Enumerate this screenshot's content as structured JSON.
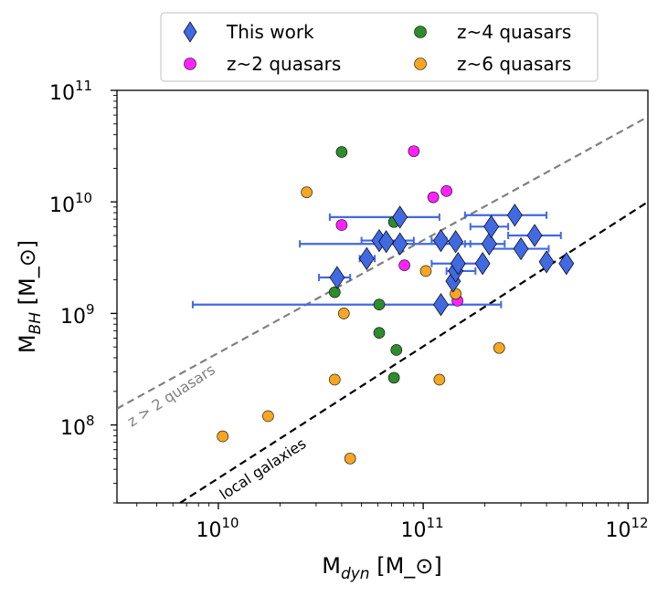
{
  "chart_data": {
    "type": "scatter",
    "title": "",
    "xlabel": "M_dyn [M_⊙]",
    "ylabel": "M_BH [M_⊙]",
    "xscale": "log",
    "yscale": "log",
    "xlim": [
      3200000000.0,
      1250000000000.0
    ],
    "ylim": [
      20000000.0,
      100000000000.0
    ],
    "x_ticks": [
      {
        "value": 10000000000.0,
        "base": "10",
        "exp": "10"
      },
      {
        "value": 100000000000.0,
        "base": "10",
        "exp": "11"
      },
      {
        "value": 1000000000000.0,
        "base": "10",
        "exp": "12"
      }
    ],
    "y_ticks": [
      {
        "value": 100000000.0,
        "base": "10",
        "exp": "8"
      },
      {
        "value": 1000000000.0,
        "base": "10",
        "exp": "9"
      },
      {
        "value": 10000000000.0,
        "base": "10",
        "exp": "10"
      },
      {
        "value": 100000000000.0,
        "base": "10",
        "exp": "11"
      }
    ],
    "legend": {
      "position": "top, outside plot",
      "entries": [
        {
          "label": "This work",
          "marker": "diamond",
          "color": "#4169e1"
        },
        {
          "label": "z~4 quasars",
          "marker": "circle",
          "color": "#2e8b2e"
        },
        {
          "label": "z~2 quasars",
          "marker": "circle",
          "color": "#ff22ff"
        },
        {
          "label": "z~6 quasars",
          "marker": "circle",
          "color": "#f5a623"
        }
      ]
    },
    "lines": [
      {
        "name": "z > 2 quasars",
        "label": "z > 2 quasars",
        "style": "dashed",
        "color": "#808080",
        "points": [
          [
            3200000000.0,
            140000000.0
          ],
          [
            1250000000000.0,
            58000000000.0
          ]
        ]
      },
      {
        "name": "local galaxies",
        "label": "local galaxies",
        "style": "dashed",
        "color": "#000000",
        "points": [
          [
            6500000000.0,
            20000000.0
          ],
          [
            1250000000000.0,
            10000000000.0
          ]
        ]
      }
    ],
    "series": [
      {
        "name": "This work",
        "marker": "diamond",
        "color": "#4169e1",
        "points": [
          {
            "x": 38000000000.0,
            "y": 2100000000.0,
            "xerr": [
              31000000000.0,
              44000000000.0
            ]
          },
          {
            "x": 53000000000.0,
            "y": 3100000000.0,
            "xerr": [
              49000000000.0,
              58000000000.0
            ]
          },
          {
            "x": 61000000000.0,
            "y": 4500000000.0,
            "xerr": [
              50000000000.0,
              90000000000.0
            ]
          },
          {
            "x": 66000000000.0,
            "y": 4400000000.0
          },
          {
            "x": 77000000000.0,
            "y": 7300000000.0,
            "xerr": [
              35000000000.0,
              120000000000.0
            ]
          },
          {
            "x": 77000000000.0,
            "y": 4200000000.0,
            "xerr": [
              25000000000.0,
              170000000000.0
            ]
          },
          {
            "x": 122000000000.0,
            "y": 4500000000.0,
            "xerr": [
              110000000000.0,
              130000000000.0
            ]
          },
          {
            "x": 122000000000.0,
            "y": 1200000000.0,
            "xerr": [
              7500000000.0,
              240000000000.0
            ]
          },
          {
            "x": 140000000000.0,
            "y": 1950000000.0
          },
          {
            "x": 144000000000.0,
            "y": 2400000000.0,
            "xerr": [
              130000000000.0,
              180000000000.0
            ]
          },
          {
            "x": 144000000000.0,
            "y": 4400000000.0
          },
          {
            "x": 148000000000.0,
            "y": 2800000000.0,
            "xerr": [
              110000000000.0,
              190000000000.0
            ]
          },
          {
            "x": 195000000000.0,
            "y": 2800000000.0
          },
          {
            "x": 210000000000.0,
            "y": 4200000000.0,
            "xerr": [
              160000000000.0,
              250000000000.0
            ]
          },
          {
            "x": 215000000000.0,
            "y": 6000000000.0,
            "xerr": [
              170000000000.0,
              260000000000.0
            ]
          },
          {
            "x": 280000000000.0,
            "y": 7600000000.0,
            "xerr": [
              160000000000.0,
              400000000000.0
            ]
          },
          {
            "x": 300000000000.0,
            "y": 3800000000.0,
            "xerr": [
              210000000000.0,
              410000000000.0
            ]
          },
          {
            "x": 350000000000.0,
            "y": 5000000000.0,
            "xerr": [
              260000000000.0,
              470000000000.0
            ]
          },
          {
            "x": 400000000000.0,
            "y": 2900000000.0
          },
          {
            "x": 500000000000.0,
            "y": 2800000000.0
          }
        ]
      },
      {
        "name": "z~4 quasars",
        "marker": "circle",
        "color": "#2e8b2e",
        "points": [
          {
            "x": 40000000000.0,
            "y": 28000000000.0
          },
          {
            "x": 72000000000.0,
            "y": 6600000000.0
          },
          {
            "x": 37000000000.0,
            "y": 1550000000.0
          },
          {
            "x": 61000000000.0,
            "y": 1200000000.0
          },
          {
            "x": 61000000000.0,
            "y": 670000000.0
          },
          {
            "x": 74000000000.0,
            "y": 470000000.0
          },
          {
            "x": 72000000000.0,
            "y": 265000000.0
          }
        ]
      },
      {
        "name": "z~2 quasars",
        "marker": "circle",
        "color": "#ff22ff",
        "points": [
          {
            "x": 90000000000.0,
            "y": 28500000000.0
          },
          {
            "x": 130000000000.0,
            "y": 12500000000.0
          },
          {
            "x": 112000000000.0,
            "y": 11000000000.0
          },
          {
            "x": 40000000000.0,
            "y": 6200000000.0
          },
          {
            "x": 81000000000.0,
            "y": 2700000000.0
          },
          {
            "x": 147000000000.0,
            "y": 1300000000.0
          }
        ]
      },
      {
        "name": "z~6 quasars",
        "marker": "circle",
        "color": "#f5a623",
        "points": [
          {
            "x": 27000000000.0,
            "y": 12200000000.0
          },
          {
            "x": 103000000000.0,
            "y": 2400000000.0
          },
          {
            "x": 144000000000.0,
            "y": 1500000000.0
          },
          {
            "x": 41000000000.0,
            "y": 1000000000.0
          },
          {
            "x": 235000000000.0,
            "y": 490000000.0
          },
          {
            "x": 37000000000.0,
            "y": 255000000.0
          },
          {
            "x": 120000000000.0,
            "y": 255000000.0
          },
          {
            "x": 17500000000.0,
            "y": 120000000.0
          },
          {
            "x": 10500000000.0,
            "y": 79000000.0
          },
          {
            "x": 44000000000.0,
            "y": 50000000.0
          }
        ]
      }
    ]
  }
}
